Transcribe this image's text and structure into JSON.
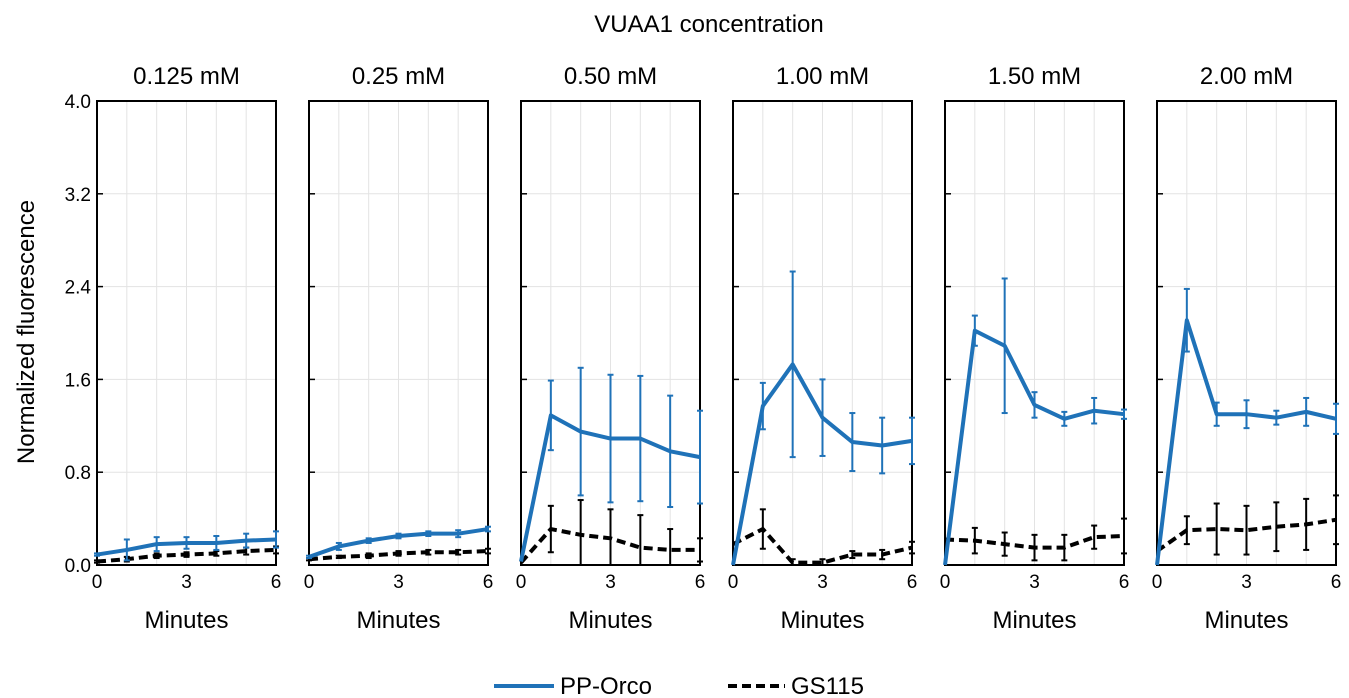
{
  "figure": {
    "supertitle": "VUAA1 concentration",
    "ylabel": "Normalized fluorescence",
    "xlabel": "Minutes"
  },
  "colors": {
    "pp_orco": "#1f72b8",
    "gs115": "#000000",
    "grid": "#e3e3e3"
  },
  "chart_data": [
    {
      "type": "line",
      "title": "0.125 mM",
      "xlabel": "Minutes",
      "ylabel": "Normalized fluorescence",
      "xlim": [
        0,
        6
      ],
      "ylim": [
        0,
        4.0
      ],
      "xticks": [
        0,
        3,
        6
      ],
      "yticks": [
        0,
        0.8,
        1.6,
        2.4,
        3.2,
        4.0
      ],
      "ytick_labels": [
        "0.0",
        "0.8",
        "1.6",
        "2.4",
        "3.2",
        "4.0"
      ],
      "grid": true,
      "x": [
        0,
        1,
        2,
        3,
        4,
        5,
        6
      ],
      "series": [
        {
          "name": "PP-Orco",
          "values": [
            0.09,
            0.13,
            0.18,
            0.19,
            0.19,
            0.21,
            0.22
          ],
          "error": [
            0.01,
            0.09,
            0.06,
            0.05,
            0.06,
            0.06,
            0.07
          ]
        },
        {
          "name": "GS115",
          "values": [
            0.03,
            0.05,
            0.08,
            0.09,
            0.1,
            0.12,
            0.13
          ],
          "error": [
            0.01,
            0.02,
            0.02,
            0.02,
            0.02,
            0.03,
            0.03
          ]
        }
      ]
    },
    {
      "type": "line",
      "title": "0.25 mM",
      "xlabel": "Minutes",
      "xlim": [
        0,
        6
      ],
      "ylim": [
        0,
        4.0
      ],
      "xticks": [
        0,
        3,
        6
      ],
      "grid": true,
      "x": [
        0,
        1,
        2,
        3,
        4,
        5,
        6
      ],
      "series": [
        {
          "name": "PP-Orco",
          "values": [
            0.07,
            0.16,
            0.21,
            0.25,
            0.27,
            0.27,
            0.31
          ],
          "error": [
            0.01,
            0.03,
            0.02,
            0.02,
            0.02,
            0.03,
            0.02
          ]
        },
        {
          "name": "GS115",
          "values": [
            0.05,
            0.07,
            0.08,
            0.1,
            0.11,
            0.11,
            0.12
          ],
          "error": [
            0.01,
            0.01,
            0.02,
            0.02,
            0.02,
            0.02,
            0.02
          ]
        }
      ]
    },
    {
      "type": "line",
      "title": "0.50 mM",
      "xlabel": "Minutes",
      "xlim": [
        0,
        6
      ],
      "ylim": [
        0,
        4.0
      ],
      "xticks": [
        0,
        3,
        6
      ],
      "grid": true,
      "x": [
        0,
        1,
        2,
        3,
        4,
        5,
        6
      ],
      "series": [
        {
          "name": "PP-Orco",
          "values": [
            0.03,
            1.29,
            1.15,
            1.09,
            1.09,
            0.98,
            0.93
          ],
          "error": [
            0.0,
            0.3,
            0.55,
            0.55,
            0.54,
            0.48,
            0.4
          ]
        },
        {
          "name": "GS115",
          "values": [
            0.02,
            0.31,
            0.26,
            0.23,
            0.15,
            0.13,
            0.13
          ],
          "error": [
            0.0,
            0.2,
            0.3,
            0.25,
            0.28,
            0.18,
            0.1
          ]
        }
      ]
    },
    {
      "type": "line",
      "title": "1.00 mM",
      "xlabel": "Minutes",
      "xlim": [
        0,
        6
      ],
      "ylim": [
        0,
        4.0
      ],
      "xticks": [
        0,
        3,
        6
      ],
      "grid": true,
      "x": [
        0,
        1,
        2,
        3,
        4,
        5,
        6
      ],
      "series": [
        {
          "name": "PP-Orco",
          "values": [
            0.0,
            1.37,
            1.73,
            1.27,
            1.06,
            1.03,
            1.07
          ],
          "error": [
            0.0,
            0.2,
            0.8,
            0.33,
            0.25,
            0.24,
            0.2
          ]
        },
        {
          "name": "GS115",
          "values": [
            0.18,
            0.31,
            0.02,
            0.02,
            0.09,
            0.09,
            0.15
          ],
          "error": [
            0.0,
            0.17,
            0.03,
            0.03,
            0.03,
            0.04,
            0.05
          ]
        }
      ]
    },
    {
      "type": "line",
      "title": "1.50 mM",
      "xlabel": "Minutes",
      "xlim": [
        0,
        6
      ],
      "ylim": [
        0,
        4.0
      ],
      "xticks": [
        0,
        3,
        6
      ],
      "grid": true,
      "x": [
        0,
        1,
        2,
        3,
        4,
        5,
        6
      ],
      "series": [
        {
          "name": "PP-Orco",
          "values": [
            0.0,
            2.02,
            1.89,
            1.38,
            1.26,
            1.33,
            1.3
          ],
          "error": [
            0.0,
            0.13,
            0.58,
            0.11,
            0.06,
            0.11,
            0.04
          ]
        },
        {
          "name": "GS115",
          "values": [
            0.22,
            0.21,
            0.18,
            0.15,
            0.15,
            0.24,
            0.25
          ],
          "error": [
            0.0,
            0.11,
            0.1,
            0.11,
            0.11,
            0.1,
            0.15
          ]
        }
      ]
    },
    {
      "type": "line",
      "title": "2.00 mM",
      "xlabel": "Minutes",
      "xlim": [
        0,
        6
      ],
      "ylim": [
        0,
        4.0
      ],
      "xticks": [
        0,
        3,
        6
      ],
      "grid": true,
      "x": [
        0,
        1,
        2,
        3,
        4,
        5,
        6
      ],
      "series": [
        {
          "name": "PP-Orco",
          "values": [
            0.0,
            2.11,
            1.3,
            1.3,
            1.27,
            1.32,
            1.26
          ],
          "error": [
            0.0,
            0.27,
            0.1,
            0.12,
            0.06,
            0.12,
            0.13
          ]
        },
        {
          "name": "GS115",
          "values": [
            0.12,
            0.3,
            0.31,
            0.3,
            0.33,
            0.35,
            0.39
          ],
          "error": [
            0.0,
            0.12,
            0.22,
            0.21,
            0.21,
            0.22,
            0.21
          ]
        }
      ]
    }
  ],
  "legend": {
    "position": "bottom-center",
    "items": [
      {
        "label": "PP-Orco",
        "style": "solid"
      },
      {
        "label": "GS115",
        "style": "dashed"
      }
    ]
  }
}
